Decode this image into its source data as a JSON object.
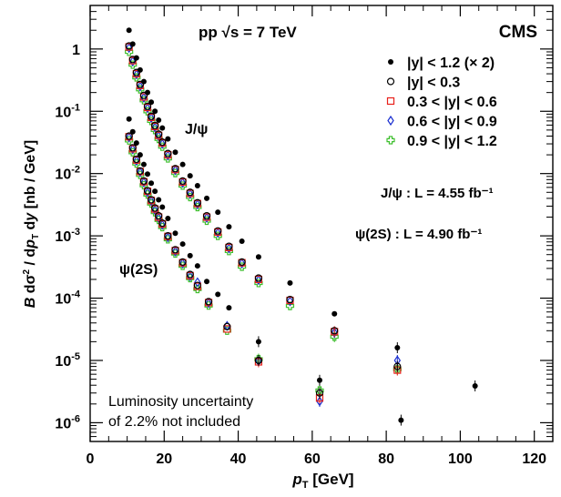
{
  "chart_data": {
    "type": "scatter",
    "xlabel": "p_T [GeV]",
    "ylabel": "B dσ²/dp_T dy [nb / GeV]",
    "xlim": [
      0,
      125
    ],
    "ylim": [
      5e-07,
      5
    ],
    "yscale": "log",
    "x_ticks": [
      "0",
      "20",
      "40",
      "60",
      "80",
      "100",
      "120"
    ],
    "y_ticks": [
      "1",
      "10⁻¹",
      "10⁻²",
      "10⁻³",
      "10⁻⁴",
      "10⁻⁵",
      "10⁻⁶"
    ],
    "legend_placement": "top-right",
    "experiment": "CMS",
    "energy": "pp √s = 7 TeV",
    "lumi_jpsi": "J/ψ : L = 4.55 fb⁻¹",
    "lumi_psi2s": "ψ(2S) : L = 4.90 fb⁻¹",
    "note_line1": "Luminosity uncertainty",
    "note_line2": "of 2.2% not included",
    "label_jpsi": "J/ψ",
    "label_psi2s": "ψ(2S)",
    "series": [
      {
        "name": "|y| < 1.2 (× 2)",
        "marker": "filled-circle",
        "color": "#000000",
        "x": [
          10.5,
          11.5,
          12.5,
          13.5,
          14.5,
          15.5,
          16.5,
          17.5,
          18.5,
          19.5,
          21,
          23,
          25,
          27,
          29,
          31.5,
          34.5,
          37.5,
          41,
          45.5,
          54,
          66,
          83,
          104,
          10.5,
          11.5,
          12.5,
          13.5,
          14.5,
          15.5,
          16.5,
          17.5,
          18.5,
          19.5,
          21,
          23,
          25,
          27,
          29,
          31.5,
          34.5,
          37.5,
          45.5,
          62,
          84
        ],
        "y": [
          2.0,
          1.2,
          0.72,
          0.46,
          0.3,
          0.2,
          0.14,
          0.1,
          0.072,
          0.054,
          0.036,
          0.022,
          0.014,
          0.0092,
          0.0064,
          0.004,
          0.0024,
          0.0014,
          0.00082,
          0.00046,
          0.000175,
          5.6e-05,
          1.6e-05,
          3.9e-06,
          0.075,
          0.047,
          0.031,
          0.02,
          0.014,
          0.0098,
          0.007,
          0.0052,
          0.0038,
          0.0029,
          0.0019,
          0.0011,
          0.00074,
          0.00048,
          0.00033,
          0.000185,
          0.000115,
          7e-05,
          2e-05,
          4.8e-06,
          1.1e-06
        ]
      },
      {
        "name": "|y| < 0.3",
        "marker": "open-circle",
        "color": "#000000",
        "x": [
          10.5,
          11.5,
          12.5,
          13.5,
          14.5,
          15.5,
          16.5,
          17.5,
          18.5,
          19.5,
          21,
          23,
          25,
          27,
          29,
          31.5,
          34.5,
          37.5,
          41,
          45.5,
          54,
          66,
          83,
          10.5,
          11.5,
          12.5,
          13.5,
          14.5,
          15.5,
          16.5,
          17.5,
          18.5,
          19.5,
          21,
          23,
          25,
          27,
          29,
          32,
          37,
          45.5,
          62
        ],
        "y": [
          1.12,
          0.68,
          0.42,
          0.27,
          0.18,
          0.12,
          0.083,
          0.059,
          0.043,
          0.032,
          0.021,
          0.012,
          0.0076,
          0.005,
          0.0034,
          0.0021,
          0.0012,
          0.00068,
          0.00038,
          0.00021,
          9.5e-05,
          3e-05,
          8e-06,
          0.04,
          0.026,
          0.017,
          0.011,
          0.0076,
          0.0053,
          0.0038,
          0.0028,
          0.0021,
          0.0016,
          0.001,
          0.0006,
          0.00038,
          0.00024,
          0.00016,
          8.8e-05,
          3.5e-05,
          1e-05,
          3e-06
        ]
      },
      {
        "name": "0.3 < |y| < 0.6",
        "marker": "open-square",
        "color": "#e8201a",
        "x": [
          10.5,
          11.5,
          12.5,
          13.5,
          14.5,
          15.5,
          16.5,
          17.5,
          18.5,
          19.5,
          21,
          23,
          25,
          27,
          29,
          31.5,
          34.5,
          37.5,
          41,
          45.5,
          54,
          66,
          83,
          10.5,
          11.5,
          12.5,
          13.5,
          14.5,
          15.5,
          16.5,
          17.5,
          18.5,
          19.5,
          21,
          23,
          25,
          27,
          29,
          32,
          37,
          45.5,
          62
        ],
        "y": [
          1.08,
          0.65,
          0.4,
          0.26,
          0.17,
          0.115,
          0.08,
          0.057,
          0.041,
          0.031,
          0.02,
          0.0116,
          0.0073,
          0.0048,
          0.0033,
          0.002,
          0.00115,
          0.00065,
          0.00037,
          0.0002,
          9.2e-05,
          2.9e-05,
          7e-06,
          0.039,
          0.025,
          0.0165,
          0.0108,
          0.0074,
          0.0052,
          0.0037,
          0.0027,
          0.002,
          0.00155,
          0.00098,
          0.00058,
          0.00037,
          0.00023,
          0.000155,
          8.5e-05,
          3.2e-05,
          9.5e-06,
          2.5e-06
        ]
      },
      {
        "name": "0.6 < |y| < 0.9",
        "marker": "open-diamond",
        "color": "#1a2fd0",
        "x": [
          10.5,
          11.5,
          12.5,
          13.5,
          14.5,
          15.5,
          16.5,
          17.5,
          18.5,
          19.5,
          21,
          23,
          25,
          27,
          29,
          31.5,
          34.5,
          37.5,
          41,
          45.5,
          54,
          66,
          83,
          10.5,
          11.5,
          12.5,
          13.5,
          14.5,
          15.5,
          16.5,
          17.5,
          18.5,
          19.5,
          21,
          23,
          25,
          27,
          29,
          32,
          37,
          45.5,
          62
        ],
        "y": [
          1.04,
          0.63,
          0.39,
          0.25,
          0.165,
          0.112,
          0.078,
          0.055,
          0.04,
          0.03,
          0.0195,
          0.0113,
          0.0071,
          0.0047,
          0.0032,
          0.00195,
          0.00112,
          0.00063,
          0.00036,
          0.000195,
          8.9e-05,
          2.8e-05,
          1e-05,
          0.038,
          0.0245,
          0.016,
          0.0105,
          0.0072,
          0.005,
          0.0036,
          0.0026,
          0.00195,
          0.0015,
          0.00095,
          0.00056,
          0.00036,
          0.000225,
          0.00018,
          8.3e-05,
          3.6e-05,
          9.8e-06,
          2.2e-06
        ]
      },
      {
        "name": "0.9 < |y| < 1.2",
        "marker": "open-cross",
        "color": "#3fbf2f",
        "x": [
          10.5,
          11.5,
          12.5,
          13.5,
          14.5,
          15.5,
          16.5,
          17.5,
          18.5,
          19.5,
          21,
          23,
          25,
          27,
          29,
          31.5,
          34.5,
          37.5,
          41,
          45.5,
          54,
          66,
          83,
          10.5,
          11.5,
          12.5,
          13.5,
          14.5,
          15.5,
          16.5,
          17.5,
          18.5,
          19.5,
          21,
          23,
          25,
          27,
          29,
          32,
          37,
          45.5,
          62
        ],
        "y": [
          0.9,
          0.56,
          0.35,
          0.225,
          0.15,
          0.1,
          0.07,
          0.05,
          0.036,
          0.027,
          0.0175,
          0.0102,
          0.0064,
          0.0042,
          0.0029,
          0.00175,
          0.001,
          0.00057,
          0.00032,
          0.000175,
          7.5e-05,
          2.4e-05,
          7.2e-06,
          0.034,
          0.022,
          0.0145,
          0.0095,
          0.0065,
          0.0046,
          0.0033,
          0.0024,
          0.0018,
          0.00138,
          0.00088,
          0.00052,
          0.00033,
          0.00021,
          0.00014,
          7.6e-05,
          3e-05,
          1.05e-05,
          3.3e-06
        ]
      }
    ]
  }
}
